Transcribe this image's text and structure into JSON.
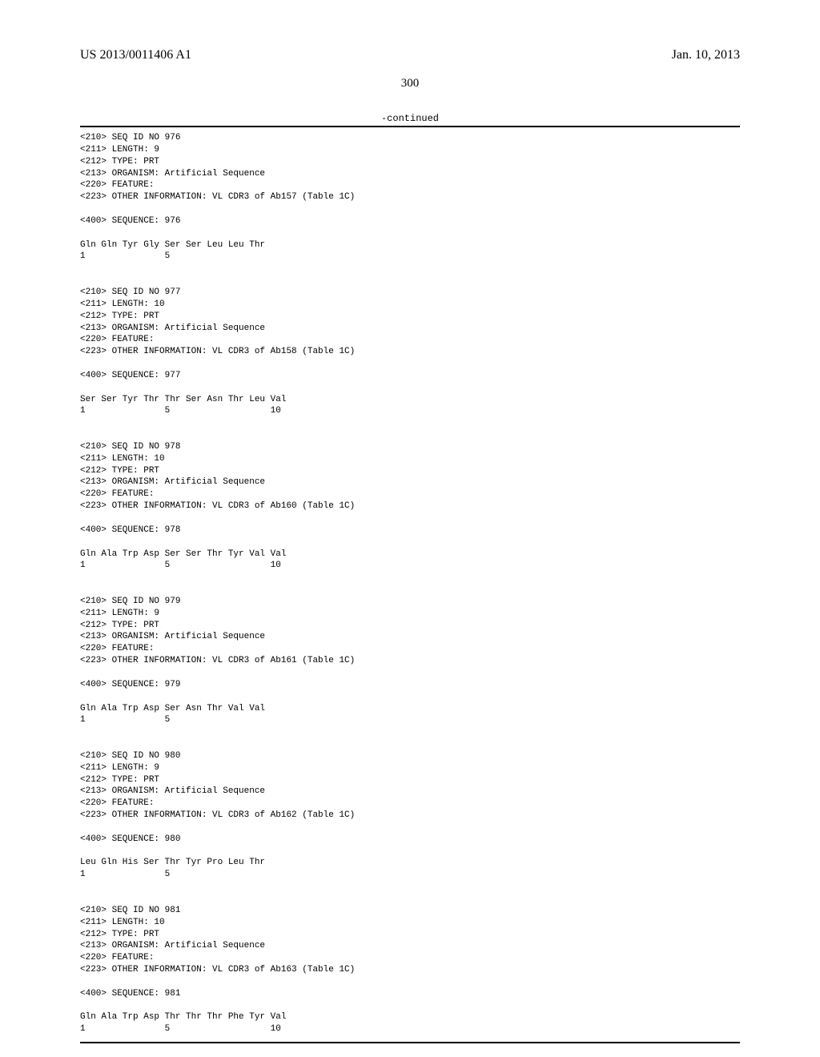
{
  "header": {
    "publication_id": "US 2013/0011406 A1",
    "date": "Jan. 10, 2013"
  },
  "page_number": "300",
  "continued_label": "-continued",
  "entries": [
    {
      "seq_id": "<210> SEQ ID NO 976",
      "length": "<211> LENGTH: 9",
      "type": "<212> TYPE: PRT",
      "organism": "<213> ORGANISM: Artificial Sequence",
      "feature": "<220> FEATURE:",
      "other_info": "<223> OTHER INFORMATION: VL CDR3 of Ab157 (Table 1C)",
      "sequence_label": "<400> SEQUENCE: 976",
      "sequence": "Gln Gln Tyr Gly Ser Ser Leu Leu Thr",
      "positions": "1               5"
    },
    {
      "seq_id": "<210> SEQ ID NO 977",
      "length": "<211> LENGTH: 10",
      "type": "<212> TYPE: PRT",
      "organism": "<213> ORGANISM: Artificial Sequence",
      "feature": "<220> FEATURE:",
      "other_info": "<223> OTHER INFORMATION: VL CDR3 of Ab158 (Table 1C)",
      "sequence_label": "<400> SEQUENCE: 977",
      "sequence": "Ser Ser Tyr Thr Thr Ser Asn Thr Leu Val",
      "positions": "1               5                   10"
    },
    {
      "seq_id": "<210> SEQ ID NO 978",
      "length": "<211> LENGTH: 10",
      "type": "<212> TYPE: PRT",
      "organism": "<213> ORGANISM: Artificial Sequence",
      "feature": "<220> FEATURE:",
      "other_info": "<223> OTHER INFORMATION: VL CDR3 of Ab160 (Table 1C)",
      "sequence_label": "<400> SEQUENCE: 978",
      "sequence": "Gln Ala Trp Asp Ser Ser Thr Tyr Val Val",
      "positions": "1               5                   10"
    },
    {
      "seq_id": "<210> SEQ ID NO 979",
      "length": "<211> LENGTH: 9",
      "type": "<212> TYPE: PRT",
      "organism": "<213> ORGANISM: Artificial Sequence",
      "feature": "<220> FEATURE:",
      "other_info": "<223> OTHER INFORMATION: VL CDR3 of Ab161 (Table 1C)",
      "sequence_label": "<400> SEQUENCE: 979",
      "sequence": "Gln Ala Trp Asp Ser Asn Thr Val Val",
      "positions": "1               5"
    },
    {
      "seq_id": "<210> SEQ ID NO 980",
      "length": "<211> LENGTH: 9",
      "type": "<212> TYPE: PRT",
      "organism": "<213> ORGANISM: Artificial Sequence",
      "feature": "<220> FEATURE:",
      "other_info": "<223> OTHER INFORMATION: VL CDR3 of Ab162 (Table 1C)",
      "sequence_label": "<400> SEQUENCE: 980",
      "sequence": "Leu Gln His Ser Thr Tyr Pro Leu Thr",
      "positions": "1               5"
    },
    {
      "seq_id": "<210> SEQ ID NO 981",
      "length": "<211> LENGTH: 10",
      "type": "<212> TYPE: PRT",
      "organism": "<213> ORGANISM: Artificial Sequence",
      "feature": "<220> FEATURE:",
      "other_info": "<223> OTHER INFORMATION: VL CDR3 of Ab163 (Table 1C)",
      "sequence_label": "<400> SEQUENCE: 981",
      "sequence": "Gln Ala Trp Asp Thr Thr Thr Phe Tyr Val",
      "positions": "1               5                   10"
    }
  ]
}
